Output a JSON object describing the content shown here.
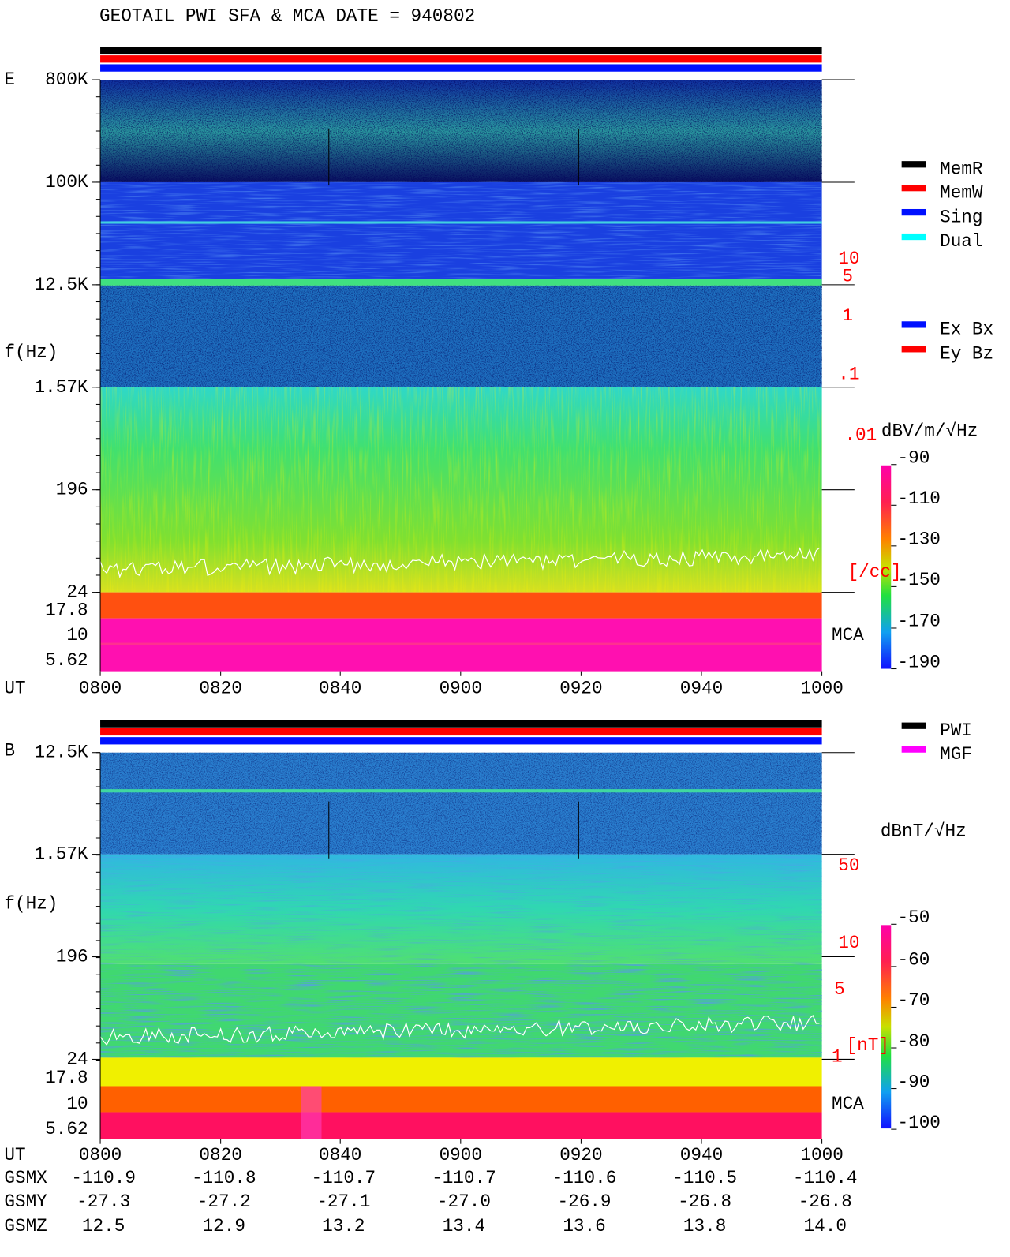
{
  "title": "GEOTAIL   PWI SFA & MCA   DATE = 940802",
  "panels": [
    {
      "component": "E",
      "y_label": "f(Hz)",
      "y_ticks": [
        "800K",
        "100K",
        "12.5K",
        "1.57K",
        "196",
        "24",
        "17.8",
        "10",
        "5.62"
      ],
      "right_labels": [
        "10",
        "5",
        "1",
        ".1",
        ".01",
        "[/cc]"
      ],
      "mca_label": "MCA",
      "x_label": "UT",
      "x_ticks": [
        "0800",
        "0820",
        "0840",
        "0900",
        "0920",
        "0940",
        "1000"
      ],
      "colorbar_unit": "dBV/m/√Hz",
      "colorbar_ticks": [
        "-90",
        "-110",
        "-130",
        "-150",
        "-170",
        "-190"
      ]
    },
    {
      "component": "B",
      "y_label": "f(Hz)",
      "y_ticks": [
        "12.5K",
        "1.57K",
        "196",
        "24",
        "17.8",
        "10",
        "5.62"
      ],
      "right_labels": [
        "50",
        "10",
        "5",
        "1",
        "[nT]"
      ],
      "mca_label": "MCA",
      "x_label": "UT",
      "x_ticks": [
        "0800",
        "0820",
        "0840",
        "0900",
        "0920",
        "0940",
        "1000"
      ],
      "colorbar_unit": "dBnT/√Hz",
      "colorbar_ticks": [
        "-50",
        "-60",
        "-70",
        "-80",
        "-90",
        "-100"
      ]
    }
  ],
  "legend_status": [
    "MemR",
    "MemW",
    "Sing",
    "Dual"
  ],
  "legend_mode": [
    "Ex Bx",
    "Ey Bz"
  ],
  "legend_source": [
    "PWI",
    "MGF"
  ],
  "orbit": [
    {
      "label": "GSMX",
      "values": [
        "-110.9",
        "-110.8",
        "-110.7",
        "-110.7",
        "-110.6",
        "-110.5",
        "-110.4"
      ]
    },
    {
      "label": "GSMY",
      "values": [
        "-27.3",
        "-27.2",
        "-27.1",
        "-27.0",
        "-26.9",
        "-26.8",
        "-26.8"
      ]
    },
    {
      "label": "GSMZ",
      "values": [
        "12.5",
        "12.9",
        "13.2",
        "13.4",
        "13.6",
        "13.8",
        "14.0"
      ]
    }
  ]
}
